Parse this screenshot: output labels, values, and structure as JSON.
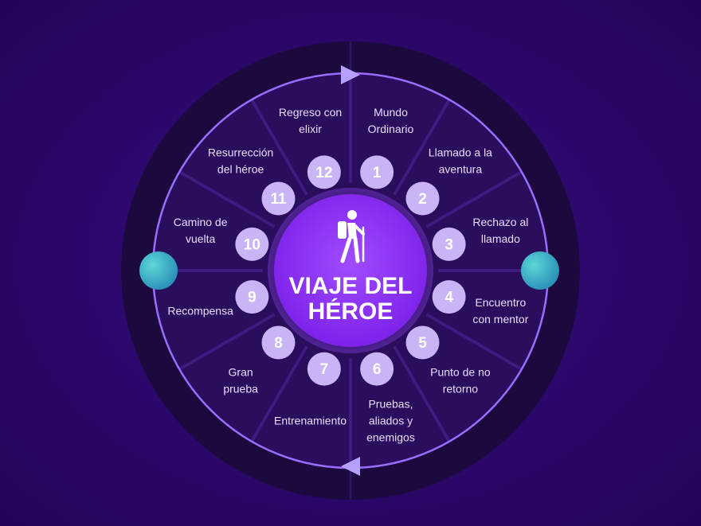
{
  "diagram": {
    "title_lines": [
      "VIAJE DEL",
      "HÉROE"
    ],
    "center_icon": "hiker-icon",
    "colors": {
      "background": "#2c0870",
      "outer_ring": "#1c0a3e",
      "inner_disc": "#2a0d5c",
      "ring_line": "#9a6cff",
      "number_circle": "#c9b5f5",
      "number_text": "#ffffff",
      "center_circle": "#8a2cf0",
      "side_markers": "#36b8c8"
    },
    "steps": [
      {
        "number": "1",
        "label": [
          "Mundo",
          "Ordinario"
        ]
      },
      {
        "number": "2",
        "label": [
          "Llamado a la",
          "aventura"
        ]
      },
      {
        "number": "3",
        "label": [
          "Rechazo al",
          "llamado"
        ]
      },
      {
        "number": "4",
        "label": [
          "Encuentro",
          "con mentor"
        ]
      },
      {
        "number": "5",
        "label": [
          "Punto de no",
          "retorno"
        ]
      },
      {
        "number": "6",
        "label": [
          "Pruebas,",
          "aliados y",
          "enemigos"
        ]
      },
      {
        "number": "7",
        "label": [
          "Entrenamiento"
        ]
      },
      {
        "number": "8",
        "label": [
          "Gran",
          "prueba"
        ]
      },
      {
        "number": "9",
        "label": [
          "Recompensa"
        ]
      },
      {
        "number": "10",
        "label": [
          "Camino de",
          "vuelta"
        ]
      },
      {
        "number": "11",
        "label": [
          "Resurrección",
          "del héroe"
        ]
      },
      {
        "number": "12",
        "label": [
          "Regreso con",
          "elixir"
        ]
      }
    ],
    "arrows": [
      "arrow-right-icon",
      "arrow-left-icon"
    ],
    "side_markers": [
      "left-marker",
      "right-marker"
    ]
  }
}
